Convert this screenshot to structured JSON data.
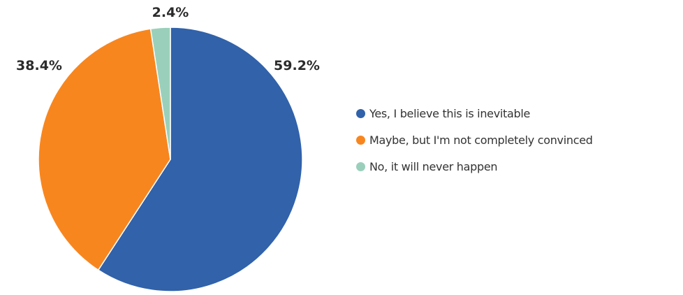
{
  "chart_data": {
    "type": "pie",
    "title": "",
    "start_angle_deg": 0,
    "direction": "clockwise",
    "legend_position": "right",
    "slices": [
      {
        "label": "Yes, I believe this is inevitable",
        "value": 59.2,
        "value_label": "59.2%",
        "color": "#3162aa"
      },
      {
        "label": "Maybe, but I'm not completely convinced",
        "value": 38.4,
        "value_label": "38.4%",
        "color": "#f8861e"
      },
      {
        "label": "No, it will never happen",
        "value": 2.4,
        "value_label": "2.4%",
        "color": "#9ad0bb"
      }
    ]
  }
}
